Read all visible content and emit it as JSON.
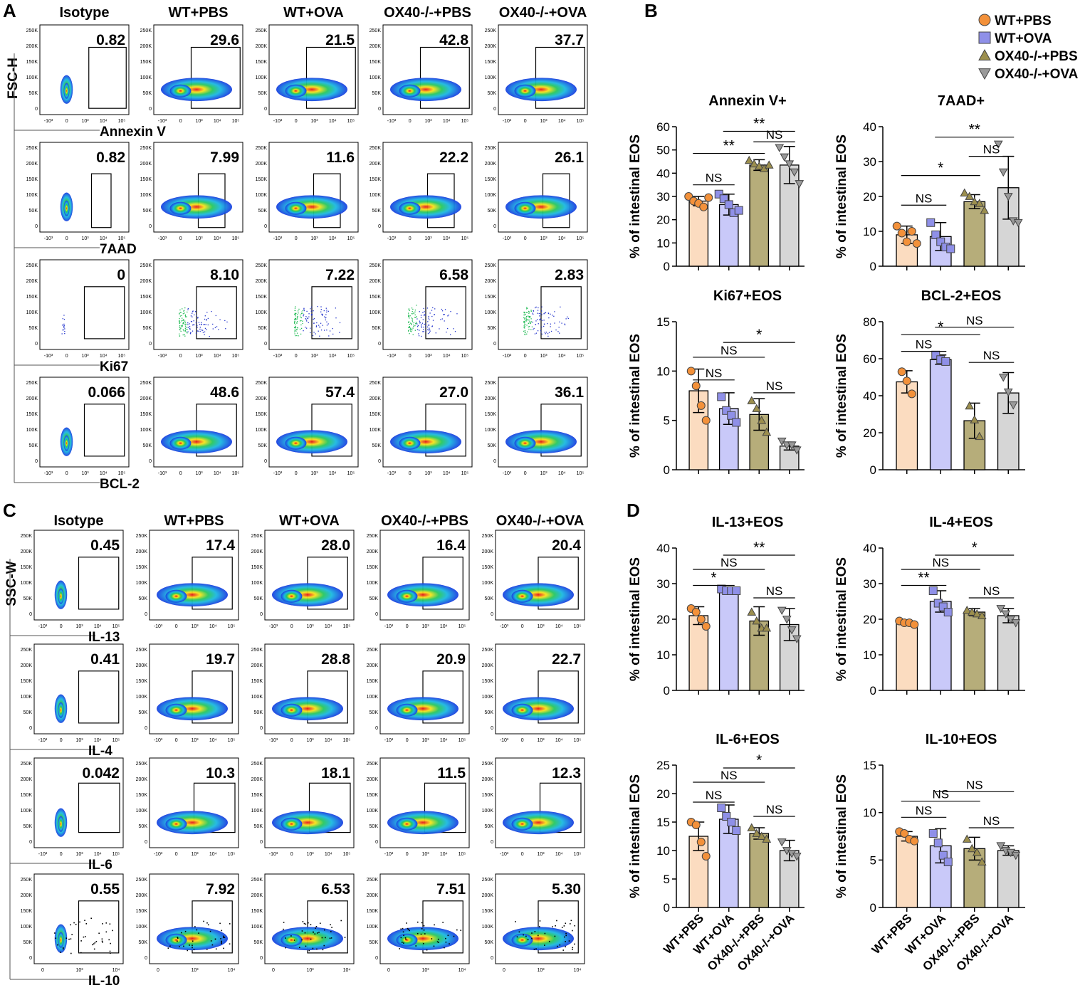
{
  "panels": {
    "a": "A",
    "b": "B",
    "c": "C",
    "d": "D"
  },
  "flow": {
    "A": {
      "columns": [
        "Isotype",
        "WT+PBS",
        "WT+OVA",
        "OX40-/-+PBS",
        "OX40-/-+OVA"
      ],
      "yaxis": "FSC-H",
      "y_ticks": [
        "250K",
        "200K",
        "150K",
        "100K",
        "50K",
        "0"
      ],
      "x_ticks": [
        "-10³",
        "0",
        "10³",
        "10⁴",
        "10⁵"
      ],
      "rows": [
        {
          "marker": "Annexin V",
          "style": "density",
          "values": [
            "0.82",
            "29.6",
            "21.5",
            "42.8",
            "37.7"
          ]
        },
        {
          "marker": "7AAD",
          "style": "density",
          "values": [
            "0.82",
            "7.99",
            "11.6",
            "22.2",
            "26.1"
          ]
        },
        {
          "marker": "Ki67",
          "style": "dots",
          "values": [
            "0",
            "8.10",
            "7.22",
            "6.58",
            "2.83"
          ]
        },
        {
          "marker": "BCL-2",
          "style": "density",
          "values": [
            "0.066",
            "48.6",
            "57.4",
            "27.0",
            "36.1"
          ]
        }
      ]
    },
    "C": {
      "columns": [
        "Isotype",
        "WT+PBS",
        "WT+OVA",
        "OX40-/-+PBS",
        "OX40-/-+OVA"
      ],
      "yaxis": "SSC-W",
      "y_ticks": [
        "250K",
        "200K",
        "150K",
        "100K",
        "50K",
        "0"
      ],
      "x_ticks": [
        "-10³",
        "0",
        "10³",
        "10⁴",
        "10⁵"
      ],
      "x_ticks_il10": [
        "0",
        "10³",
        "10⁴"
      ],
      "rows": [
        {
          "marker": "IL-13",
          "style": "density",
          "values": [
            "0.45",
            "17.4",
            "28.0",
            "16.4",
            "20.4"
          ]
        },
        {
          "marker": "IL-4",
          "style": "density",
          "values": [
            "0.41",
            "19.7",
            "28.8",
            "20.9",
            "22.7"
          ]
        },
        {
          "marker": "IL-6",
          "style": "density",
          "values": [
            "0.042",
            "10.3",
            "18.1",
            "11.5",
            "12.3"
          ]
        },
        {
          "marker": "IL-10",
          "style": "density",
          "values": [
            "0.55",
            "7.92",
            "6.53",
            "7.51",
            "5.30"
          ]
        }
      ]
    }
  },
  "legend": [
    {
      "label": "WT+PBS",
      "shape": "circle",
      "fill": "#f3913a"
    },
    {
      "label": "WT+OVA",
      "shape": "square",
      "fill": "#8f90e8"
    },
    {
      "label": "OX40-/-+PBS",
      "shape": "triangle-up",
      "fill": "#9c8f4e"
    },
    {
      "label": "OX40-/-+OVA",
      "shape": "triangle-down",
      "fill": "#9a9a9a"
    }
  ],
  "bar_style": {
    "fills": [
      "#fbdcc0",
      "#c9c9f9",
      "#b6ad7a",
      "#d6d6d6"
    ],
    "points": [
      "#f3913a",
      "#8f90e8",
      "#9c8f4e",
      "#9a9a9a"
    ],
    "shapes": [
      "circle",
      "square",
      "triangle-up",
      "triangle-down"
    ]
  },
  "chart_data": [
    {
      "type": "bar",
      "title": "Annexin V+",
      "ylabel": "% of intestinal EOS",
      "ylim": [
        0,
        60
      ],
      "yticks": [
        0,
        10,
        20,
        30,
        40,
        50,
        60
      ],
      "categories": [
        "WT+PBS",
        "WT+OVA",
        "OX40-/-+PBS",
        "OX40-/-+OVA"
      ],
      "values": [
        28,
        26.5,
        43.5,
        43.5
      ],
      "sd": [
        2,
        4.5,
        2.3,
        8
      ],
      "points": [
        [
          30,
          28,
          27,
          25.5,
          29.5
        ],
        [
          31,
          29,
          26.5,
          23,
          24
        ],
        [
          45.5,
          44,
          43,
          42,
          43.5
        ],
        [
          51,
          47,
          44,
          40.5,
          35.5
        ]
      ],
      "sig": [
        {
          "a": 0,
          "b": 1,
          "label": "NS",
          "y": 35
        },
        {
          "a": 0,
          "b": 2,
          "label": "**",
          "y": 48.5
        },
        {
          "a": 1,
          "b": 3,
          "label": "**",
          "y": 58
        },
        {
          "a": 2,
          "b": 3,
          "label": "NS",
          "y": 53.5
        }
      ],
      "show_xlabels": false
    },
    {
      "type": "bar",
      "title": "7AAD+",
      "ylabel": "% of intestinal EOS",
      "ylim": [
        0,
        40
      ],
      "yticks": [
        0,
        10,
        20,
        30,
        40
      ],
      "categories": [
        "WT+PBS",
        "WT+OVA",
        "OX40-/-+PBS",
        "OX40-/-+OVA"
      ],
      "values": [
        9,
        8.5,
        18.5,
        22.5
      ],
      "sd": [
        2.5,
        4,
        2,
        9
      ],
      "points": [
        [
          11.5,
          9.5,
          7,
          10,
          6.5
        ],
        [
          12.5,
          9,
          7,
          5.5,
          5
        ],
        [
          21,
          20,
          18.5,
          18,
          16
        ],
        [
          35,
          27,
          20,
          13,
          12.5
        ]
      ],
      "sig": [
        {
          "a": 0,
          "b": 1,
          "label": "NS",
          "y": 17.5
        },
        {
          "a": 0,
          "b": 2,
          "label": "*",
          "y": 26
        },
        {
          "a": 1,
          "b": 3,
          "label": "**",
          "y": 37
        },
        {
          "a": 2,
          "b": 3,
          "label": "NS",
          "y": 31.5
        }
      ],
      "show_xlabels": false
    },
    {
      "type": "bar",
      "title": "Ki67+EOS",
      "ylabel": "% of intestinal EOS",
      "ylim": [
        0,
        15
      ],
      "yticks": [
        0,
        5,
        10,
        15
      ],
      "categories": [
        "WT+PBS",
        "WT+OVA",
        "OX40-/-+PBS",
        "OX40-/-+OVA"
      ],
      "values": [
        8,
        6.2,
        5.6,
        2.4
      ],
      "sd": [
        2.2,
        1.6,
        1.6,
        0.4
      ],
      "points": [
        [
          10,
          8.5,
          6.5,
          5
        ],
        [
          7.4,
          6,
          5.5,
          4.8
        ],
        [
          7,
          6.2,
          5,
          3.8
        ],
        [
          2.9,
          2.5,
          2.5,
          2
        ]
      ],
      "sig": [
        {
          "a": 0,
          "b": 1,
          "label": "NS",
          "y": 9.1
        },
        {
          "a": 0,
          "b": 2,
          "label": "NS",
          "y": 11.4
        },
        {
          "a": 1,
          "b": 3,
          "label": "*",
          "y": 12.9
        },
        {
          "a": 2,
          "b": 3,
          "label": "NS",
          "y": 7.8
        }
      ],
      "show_xlabels": false
    },
    {
      "type": "bar",
      "title": "BCL-2+EOS",
      "ylabel": "% of intestinal EOS",
      "ylim": [
        0,
        80
      ],
      "yticks": [
        0,
        20,
        40,
        60,
        80
      ],
      "categories": [
        "WT+PBS",
        "WT+OVA",
        "OX40-/-+PBS",
        "OX40-/-+OVA"
      ],
      "values": [
        47.5,
        59.5,
        26.5,
        41.5
      ],
      "sd": [
        6,
        2.5,
        9.5,
        11
      ],
      "points": [
        [
          53,
          48,
          41
        ],
        [
          62,
          59.5,
          58.5
        ],
        [
          34.5,
          27,
          18
        ],
        [
          50,
          42,
          35
        ]
      ],
      "sig": [
        {
          "a": 0,
          "b": 1,
          "label": "NS",
          "y": 64
        },
        {
          "a": 0,
          "b": 2,
          "label": "*",
          "y": 73
        },
        {
          "a": 1,
          "b": 3,
          "label": "NS",
          "y": 77
        },
        {
          "a": 2,
          "b": 3,
          "label": "NS",
          "y": 58
        }
      ],
      "show_xlabels": false
    },
    {
      "type": "bar",
      "title": "IL-13+EOS",
      "ylabel": "% of intestinal EOS",
      "ylim": [
        0,
        40
      ],
      "yticks": [
        0,
        10,
        20,
        30,
        40
      ],
      "categories": [
        "WT+PBS",
        "WT+OVA",
        "OX40-/-+PBS",
        "OX40-/-+OVA"
      ],
      "values": [
        21,
        28,
        19.5,
        18.5
      ],
      "sd": [
        2.5,
        0.5,
        4,
        4.5
      ],
      "points": [
        [
          23,
          22,
          20,
          18
        ],
        [
          28.5,
          28,
          28,
          28
        ],
        [
          22,
          19.5,
          17.5,
          17.5
        ],
        [
          22.5,
          20,
          17,
          14.5
        ]
      ],
      "sig": [
        {
          "a": 0,
          "b": 1,
          "label": "*",
          "y": 29.5
        },
        {
          "a": 0,
          "b": 2,
          "label": "NS",
          "y": 34
        },
        {
          "a": 1,
          "b": 3,
          "label": "**",
          "y": 38
        },
        {
          "a": 2,
          "b": 3,
          "label": "NS",
          "y": 26
        }
      ],
      "show_xlabels": false
    },
    {
      "type": "bar",
      "title": "IL-4+EOS",
      "ylabel": "% of intestinal EOS",
      "ylim": [
        0,
        40
      ],
      "yticks": [
        0,
        10,
        20,
        30,
        40
      ],
      "categories": [
        "WT+PBS",
        "WT+OVA",
        "OX40-/-+PBS",
        "OX40-/-+OVA"
      ],
      "values": [
        19,
        25,
        22,
        21
      ],
      "sd": [
        0.4,
        3,
        1,
        2
      ],
      "points": [
        [
          19.5,
          19,
          19,
          18.5
        ],
        [
          28,
          24.5,
          23.5,
          22
        ],
        [
          22.5,
          22,
          21.5,
          21
        ],
        [
          23,
          21.5,
          20,
          19
        ]
      ],
      "sig": [
        {
          "a": 0,
          "b": 1,
          "label": "**",
          "y": 29.5
        },
        {
          "a": 0,
          "b": 2,
          "label": "NS",
          "y": 34
        },
        {
          "a": 1,
          "b": 3,
          "label": "*",
          "y": 38
        },
        {
          "a": 2,
          "b": 3,
          "label": "NS",
          "y": 26
        }
      ],
      "show_xlabels": false
    },
    {
      "type": "bar",
      "title": "IL-6+EOS",
      "ylabel": "% of intestinal EOS",
      "ylim": [
        0,
        25
      ],
      "yticks": [
        0,
        5,
        10,
        15,
        20,
        25
      ],
      "categories": [
        "WT+PBS",
        "WT+OVA",
        "OX40-/-+PBS",
        "OX40-/-+OVA"
      ],
      "values": [
        12.5,
        15.5,
        13,
        10
      ],
      "sd": [
        2.5,
        2.5,
        1,
        1.8
      ],
      "points": [
        [
          15,
          14.5,
          11.5,
          9
        ],
        [
          17.5,
          16,
          15,
          13.5
        ],
        [
          14,
          13,
          12.5,
          12
        ],
        [
          11.5,
          10,
          9.5,
          9
        ]
      ],
      "sig": [
        {
          "a": 0,
          "b": 1,
          "label": "NS",
          "y": 18.5
        },
        {
          "a": 0,
          "b": 2,
          "label": "NS",
          "y": 22
        },
        {
          "a": 1,
          "b": 3,
          "label": "*",
          "y": 24.5
        },
        {
          "a": 2,
          "b": 3,
          "label": "NS",
          "y": 16
        }
      ],
      "show_xlabels": true
    },
    {
      "type": "bar",
      "title": "IL-10+EOS",
      "ylabel": "% of intestinal EOS",
      "ylim": [
        0,
        15
      ],
      "yticks": [
        0,
        5,
        10,
        15
      ],
      "categories": [
        "WT+PBS",
        "WT+OVA",
        "OX40-/-+PBS",
        "OX40-/-+OVA"
      ],
      "values": [
        7.5,
        6.5,
        6.2,
        6
      ],
      "sd": [
        0.5,
        1.8,
        1.2,
        0.5
      ],
      "points": [
        [
          8,
          7.8,
          7.2,
          7
        ],
        [
          7.8,
          6.8,
          5.5,
          4.8
        ],
        [
          7.2,
          6.2,
          5.8,
          4.8
        ],
        [
          6.5,
          6,
          5.8,
          5.5
        ]
      ],
      "sig": [
        {
          "a": 0,
          "b": 1,
          "label": "NS",
          "y": 9.5
        },
        {
          "a": 0,
          "b": 2,
          "label": "NS",
          "y": 11.2
        },
        {
          "a": 1,
          "b": 3,
          "label": "NS",
          "y": 12.2
        },
        {
          "a": 2,
          "b": 3,
          "label": "NS",
          "y": 8.4
        }
      ],
      "show_xlabels": true
    }
  ]
}
